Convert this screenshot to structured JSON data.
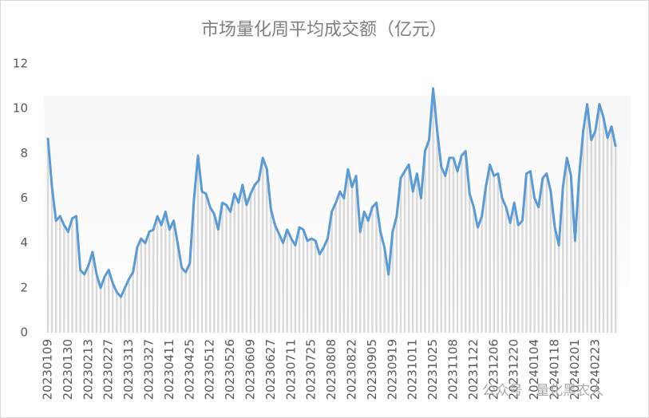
{
  "chart_data": {
    "type": "line",
    "title": "市场量化周平均成交额（亿元）",
    "watermark": "公众号 · 量化黑农人",
    "categories": [
      "20230109",
      null,
      null,
      null,
      null,
      "20230130",
      null,
      null,
      null,
      null,
      "20230213",
      null,
      null,
      null,
      null,
      "20230227",
      null,
      null,
      null,
      null,
      "20230313",
      null,
      null,
      null,
      null,
      "20230327",
      null,
      null,
      null,
      null,
      "20230411",
      null,
      null,
      null,
      null,
      "20230425",
      null,
      null,
      null,
      null,
      "20230512",
      null,
      null,
      null,
      null,
      "20230526",
      null,
      null,
      null,
      null,
      "20230609",
      null,
      null,
      null,
      null,
      "20230627",
      null,
      null,
      null,
      null,
      "20230711",
      null,
      null,
      null,
      null,
      "20230725",
      null,
      null,
      null,
      null,
      "20230808",
      null,
      null,
      null,
      null,
      "20230822",
      null,
      null,
      null,
      null,
      "20230905",
      null,
      null,
      null,
      null,
      "20230919",
      null,
      null,
      null,
      null,
      "20231011",
      null,
      null,
      null,
      null,
      "20231025",
      null,
      null,
      null,
      null,
      "20231108",
      null,
      null,
      null,
      null,
      "20231122",
      null,
      null,
      null,
      null,
      "20231206",
      null,
      null,
      null,
      null,
      "20231220",
      null,
      null,
      null,
      null,
      "20240104",
      null,
      null,
      null,
      null,
      "20240118",
      null,
      null,
      null,
      null,
      "20240201",
      null,
      null,
      null,
      null,
      "20240223",
      null,
      null,
      null,
      null,
      null
    ],
    "values": [
      8.7,
      6.5,
      5.0,
      5.2,
      4.8,
      4.5,
      5.1,
      5.2,
      2.8,
      2.6,
      3.0,
      3.6,
      2.6,
      2.0,
      2.5,
      2.8,
      2.2,
      1.8,
      1.6,
      2.0,
      2.4,
      2.7,
      3.8,
      4.2,
      4.0,
      4.5,
      4.6,
      5.2,
      4.8,
      5.4,
      4.6,
      5.0,
      4.0,
      2.9,
      2.7,
      3.1,
      5.9,
      7.9,
      6.3,
      6.2,
      5.6,
      5.3,
      4.6,
      5.8,
      5.7,
      5.4,
      6.2,
      5.8,
      6.6,
      5.7,
      6.2,
      6.6,
      6.8,
      7.8,
      7.3,
      5.5,
      4.8,
      4.4,
      4.0,
      4.6,
      4.2,
      3.9,
      4.7,
      4.6,
      4.1,
      4.2,
      4.1,
      3.5,
      3.8,
      4.2,
      5.4,
      5.8,
      6.3,
      6.0,
      7.3,
      6.5,
      7.0,
      4.5,
      5.4,
      5.0,
      5.6,
      5.8,
      4.5,
      3.8,
      2.6,
      4.5,
      5.2,
      6.9,
      7.2,
      7.5,
      6.3,
      7.1,
      6.0,
      8.1,
      8.6,
      10.9,
      9.0,
      7.4,
      7.0,
      7.8,
      7.8,
      7.2,
      7.9,
      8.1,
      6.2,
      5.6,
      4.7,
      5.2,
      6.5,
      7.5,
      7.0,
      7.1,
      6.0,
      5.6,
      4.9,
      5.8,
      4.8,
      5.0,
      7.1,
      7.2,
      6.0,
      5.6,
      6.9,
      7.1,
      6.3,
      4.7,
      3.9,
      6.5,
      7.8,
      7.0,
      4.1,
      7.0,
      9.0,
      10.2,
      8.6,
      9.0,
      10.2,
      9.6,
      8.7,
      9.2,
      8.3
    ],
    "color": "#5b9bd5",
    "bar_color": "#d9d9d9",
    "ylim": [
      0,
      12
    ],
    "yticks": [
      0,
      2,
      4,
      6,
      8,
      10,
      12
    ]
  }
}
